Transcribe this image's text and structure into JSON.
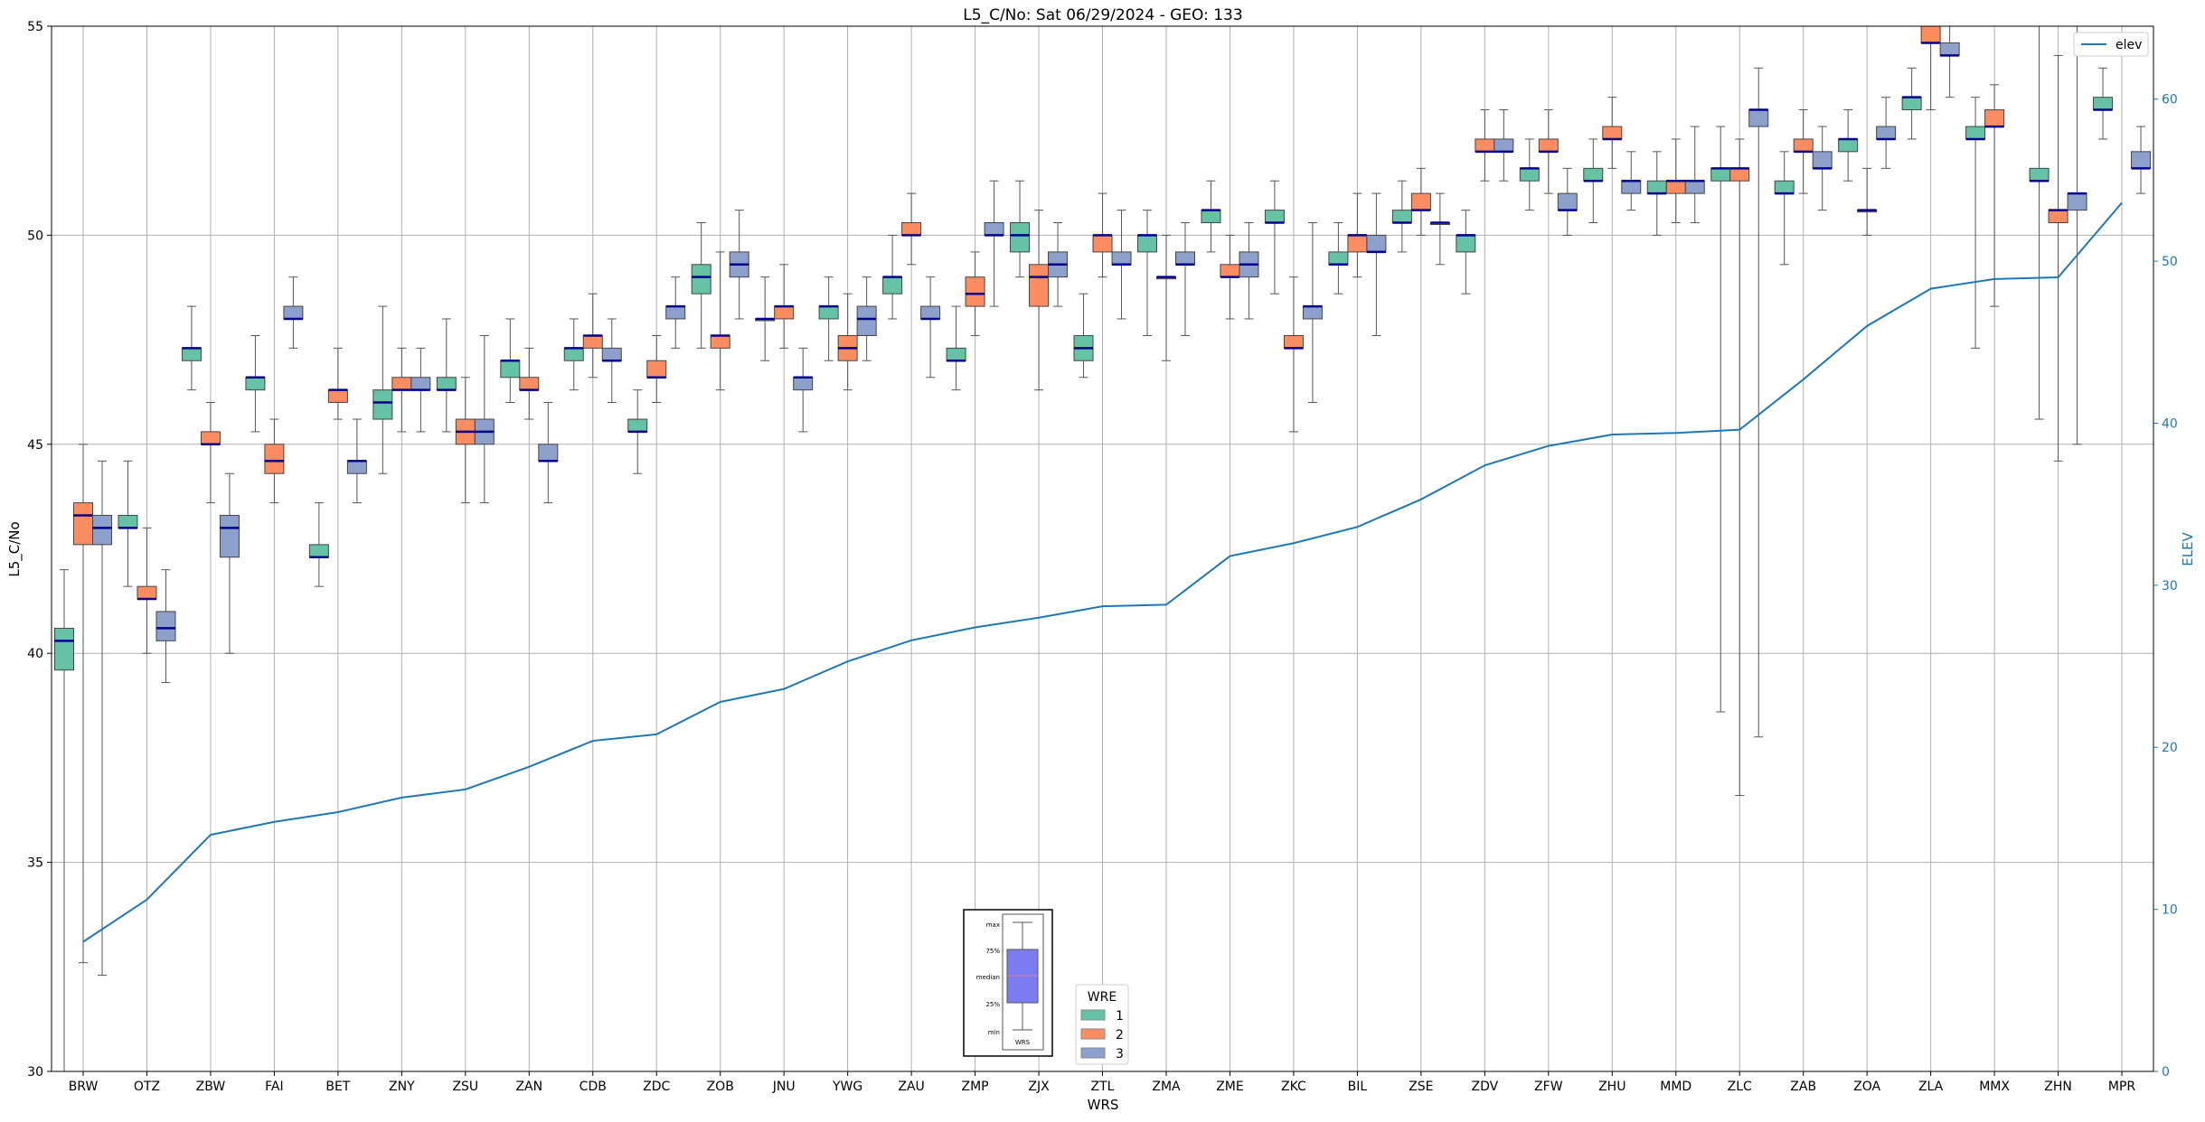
{
  "chart_data": {
    "type": "box",
    "title": "L5_C/No: Sat 06/29/2024 - GEO: 133",
    "xlabel": "WRS",
    "ylabel": "L5_C/No",
    "y2label": "ELEV",
    "ylim": [
      30,
      55
    ],
    "y2lim": [
      0,
      64.5
    ],
    "yticks": [
      30,
      35,
      40,
      45,
      50,
      55
    ],
    "y2ticks": [
      0,
      10,
      20,
      30,
      40,
      50,
      60
    ],
    "grid": true,
    "categories": [
      "BRW",
      "OTZ",
      "ZBW",
      "FAI",
      "BET",
      "ZNY",
      "ZSU",
      "ZAN",
      "CDB",
      "ZDC",
      "ZOB",
      "JNU",
      "YWG",
      "ZAU",
      "ZMP",
      "ZJX",
      "ZTL",
      "ZMA",
      "ZME",
      "ZKC",
      "BIL",
      "ZSE",
      "ZDV",
      "ZFW",
      "ZHU",
      "MMD",
      "ZLC",
      "ZAB",
      "ZOA",
      "ZLA",
      "MMX",
      "ZHN",
      "MPR"
    ],
    "wre_colors": {
      "1": "#66c2a5",
      "2": "#fc8d62",
      "3": "#8da0cb"
    },
    "boxes": [
      {
        "wrs": "BRW",
        "wre": 1,
        "min": 30.0,
        "q1": 39.6,
        "median": 40.3,
        "q3": 40.6,
        "max": 42.0
      },
      {
        "wrs": "BRW",
        "wre": 2,
        "min": 32.6,
        "q1": 42.6,
        "median": 43.3,
        "q3": 43.6,
        "max": 45.0
      },
      {
        "wrs": "BRW",
        "wre": 3,
        "min": 32.3,
        "q1": 42.6,
        "median": 43.0,
        "q3": 43.3,
        "max": 44.6
      },
      {
        "wrs": "OTZ",
        "wre": 1,
        "min": 41.6,
        "q1": 43.0,
        "median": 43.0,
        "q3": 43.3,
        "max": 44.6
      },
      {
        "wrs": "OTZ",
        "wre": 2,
        "min": 40.0,
        "q1": 41.3,
        "median": 41.3,
        "q3": 41.6,
        "max": 43.0
      },
      {
        "wrs": "OTZ",
        "wre": 3,
        "min": 39.3,
        "q1": 40.3,
        "median": 40.6,
        "q3": 41.0,
        "max": 42.0
      },
      {
        "wrs": "ZBW",
        "wre": 1,
        "min": 46.3,
        "q1": 47.0,
        "median": 47.3,
        "q3": 47.3,
        "max": 48.3
      },
      {
        "wrs": "ZBW",
        "wre": 2,
        "min": 43.6,
        "q1": 45.0,
        "median": 45.0,
        "q3": 45.3,
        "max": 46.0
      },
      {
        "wrs": "ZBW",
        "wre": 3,
        "min": 40.0,
        "q1": 42.3,
        "median": 43.0,
        "q3": 43.3,
        "max": 44.3
      },
      {
        "wrs": "FAI",
        "wre": 1,
        "min": 45.3,
        "q1": 46.3,
        "median": 46.6,
        "q3": 46.6,
        "max": 47.6
      },
      {
        "wrs": "FAI",
        "wre": 2,
        "min": 43.6,
        "q1": 44.3,
        "median": 44.6,
        "q3": 45.0,
        "max": 45.6
      },
      {
        "wrs": "FAI",
        "wre": 3,
        "min": 47.3,
        "q1": 48.0,
        "median": 48.0,
        "q3": 48.3,
        "max": 49.0
      },
      {
        "wrs": "BET",
        "wre": 1,
        "min": 41.6,
        "q1": 42.3,
        "median": 42.3,
        "q3": 42.6,
        "max": 43.6
      },
      {
        "wrs": "BET",
        "wre": 2,
        "min": 45.6,
        "q1": 46.0,
        "median": 46.3,
        "q3": 46.3,
        "max": 47.3
      },
      {
        "wrs": "BET",
        "wre": 3,
        "min": 43.6,
        "q1": 44.3,
        "median": 44.6,
        "q3": 44.6,
        "max": 45.6
      },
      {
        "wrs": "ZNY",
        "wre": 1,
        "min": 44.3,
        "q1": 45.6,
        "median": 46.0,
        "q3": 46.3,
        "max": 48.3
      },
      {
        "wrs": "ZNY",
        "wre": 2,
        "min": 45.3,
        "q1": 46.3,
        "median": 46.3,
        "q3": 46.6,
        "max": 47.3
      },
      {
        "wrs": "ZNY",
        "wre": 3,
        "min": 45.3,
        "q1": 46.3,
        "median": 46.3,
        "q3": 46.6,
        "max": 47.3
      },
      {
        "wrs": "ZSU",
        "wre": 1,
        "min": 45.3,
        "q1": 46.3,
        "median": 46.3,
        "q3": 46.6,
        "max": 48.0
      },
      {
        "wrs": "ZSU",
        "wre": 2,
        "min": 43.6,
        "q1": 45.0,
        "median": 45.3,
        "q3": 45.6,
        "max": 46.6
      },
      {
        "wrs": "ZSU",
        "wre": 3,
        "min": 43.6,
        "q1": 45.0,
        "median": 45.3,
        "q3": 45.6,
        "max": 47.6
      },
      {
        "wrs": "ZAN",
        "wre": 1,
        "min": 46.0,
        "q1": 46.6,
        "median": 47.0,
        "q3": 47.0,
        "max": 48.0
      },
      {
        "wrs": "ZAN",
        "wre": 2,
        "min": 45.6,
        "q1": 46.3,
        "median": 46.3,
        "q3": 46.6,
        "max": 47.3
      },
      {
        "wrs": "ZAN",
        "wre": 3,
        "min": 43.6,
        "q1": 44.6,
        "median": 44.6,
        "q3": 45.0,
        "max": 46.0
      },
      {
        "wrs": "CDB",
        "wre": 1,
        "min": 46.3,
        "q1": 47.0,
        "median": 47.3,
        "q3": 47.3,
        "max": 48.0
      },
      {
        "wrs": "CDB",
        "wre": 2,
        "min": 46.6,
        "q1": 47.3,
        "median": 47.6,
        "q3": 47.6,
        "max": 48.6
      },
      {
        "wrs": "CDB",
        "wre": 3,
        "min": 46.0,
        "q1": 47.0,
        "median": 47.0,
        "q3": 47.3,
        "max": 48.0
      },
      {
        "wrs": "ZDC",
        "wre": 1,
        "min": 44.3,
        "q1": 45.3,
        "median": 45.3,
        "q3": 45.6,
        "max": 46.3
      },
      {
        "wrs": "ZDC",
        "wre": 2,
        "min": 46.0,
        "q1": 46.6,
        "median": 46.6,
        "q3": 47.0,
        "max": 47.6
      },
      {
        "wrs": "ZDC",
        "wre": 3,
        "min": 47.3,
        "q1": 48.0,
        "median": 48.3,
        "q3": 48.3,
        "max": 49.0
      },
      {
        "wrs": "ZOB",
        "wre": 1,
        "min": 47.3,
        "q1": 48.6,
        "median": 49.0,
        "q3": 49.3,
        "max": 50.3
      },
      {
        "wrs": "ZOB",
        "wre": 2,
        "min": 46.3,
        "q1": 47.3,
        "median": 47.6,
        "q3": 47.6,
        "max": 49.6
      },
      {
        "wrs": "ZOB",
        "wre": 3,
        "min": 48.0,
        "q1": 49.0,
        "median": 49.3,
        "q3": 49.6,
        "max": 50.6
      },
      {
        "wrs": "JNU",
        "wre": 1,
        "min": 47.0,
        "q1": 48.0,
        "median": 48.0,
        "q3": 48.0,
        "max": 49.0
      },
      {
        "wrs": "JNU",
        "wre": 2,
        "min": 47.3,
        "q1": 48.0,
        "median": 48.3,
        "q3": 48.3,
        "max": 49.3
      },
      {
        "wrs": "JNU",
        "wre": 3,
        "min": 45.3,
        "q1": 46.3,
        "median": 46.6,
        "q3": 46.6,
        "max": 47.3
      },
      {
        "wrs": "YWG",
        "wre": 1,
        "min": 47.0,
        "q1": 48.0,
        "median": 48.3,
        "q3": 48.3,
        "max": 49.0
      },
      {
        "wrs": "YWG",
        "wre": 2,
        "min": 46.3,
        "q1": 47.0,
        "median": 47.3,
        "q3": 47.6,
        "max": 48.6
      },
      {
        "wrs": "YWG",
        "wre": 3,
        "min": 47.0,
        "q1": 47.6,
        "median": 48.0,
        "q3": 48.3,
        "max": 49.0
      },
      {
        "wrs": "ZAU",
        "wre": 1,
        "min": 48.0,
        "q1": 48.6,
        "median": 49.0,
        "q3": 49.0,
        "max": 50.0
      },
      {
        "wrs": "ZAU",
        "wre": 2,
        "min": 49.3,
        "q1": 50.0,
        "median": 50.0,
        "q3": 50.3,
        "max": 51.0
      },
      {
        "wrs": "ZAU",
        "wre": 3,
        "min": 46.6,
        "q1": 48.0,
        "median": 48.0,
        "q3": 48.3,
        "max": 49.0
      },
      {
        "wrs": "ZMP",
        "wre": 1,
        "min": 46.3,
        "q1": 47.0,
        "median": 47.0,
        "q3": 47.3,
        "max": 48.3
      },
      {
        "wrs": "ZMP",
        "wre": 2,
        "min": 47.6,
        "q1": 48.3,
        "median": 48.6,
        "q3": 49.0,
        "max": 49.6
      },
      {
        "wrs": "ZMP",
        "wre": 3,
        "min": 48.3,
        "q1": 50.0,
        "median": 50.0,
        "q3": 50.3,
        "max": 51.3
      },
      {
        "wrs": "ZJX",
        "wre": 1,
        "min": 49.0,
        "q1": 49.6,
        "median": 50.0,
        "q3": 50.3,
        "max": 51.3
      },
      {
        "wrs": "ZJX",
        "wre": 2,
        "min": 46.3,
        "q1": 48.3,
        "median": 49.0,
        "q3": 49.3,
        "max": 50.6
      },
      {
        "wrs": "ZJX",
        "wre": 3,
        "min": 48.3,
        "q1": 49.0,
        "median": 49.3,
        "q3": 49.6,
        "max": 50.3
      },
      {
        "wrs": "ZTL",
        "wre": 1,
        "min": 46.6,
        "q1": 47.0,
        "median": 47.3,
        "q3": 47.6,
        "max": 48.6
      },
      {
        "wrs": "ZTL",
        "wre": 2,
        "min": 49.0,
        "q1": 49.6,
        "median": 50.0,
        "q3": 50.0,
        "max": 51.0
      },
      {
        "wrs": "ZTL",
        "wre": 3,
        "min": 48.0,
        "q1": 49.3,
        "median": 49.3,
        "q3": 49.6,
        "max": 50.6
      },
      {
        "wrs": "ZMA",
        "wre": 1,
        "min": 47.6,
        "q1": 49.6,
        "median": 50.0,
        "q3": 50.0,
        "max": 50.6
      },
      {
        "wrs": "ZMA",
        "wre": 2,
        "min": 47.0,
        "q1": 49.0,
        "median": 49.0,
        "q3": 49.0,
        "max": 50.0
      },
      {
        "wrs": "ZMA",
        "wre": 3,
        "min": 47.6,
        "q1": 49.3,
        "median": 49.3,
        "q3": 49.6,
        "max": 50.3
      },
      {
        "wrs": "ZME",
        "wre": 1,
        "min": 49.6,
        "q1": 50.3,
        "median": 50.6,
        "q3": 50.6,
        "max": 51.3
      },
      {
        "wrs": "ZME",
        "wre": 2,
        "min": 48.0,
        "q1": 49.0,
        "median": 49.0,
        "q3": 49.3,
        "max": 50.0
      },
      {
        "wrs": "ZME",
        "wre": 3,
        "min": 48.0,
        "q1": 49.0,
        "median": 49.3,
        "q3": 49.6,
        "max": 50.3
      },
      {
        "wrs": "ZKC",
        "wre": 1,
        "min": 48.6,
        "q1": 50.3,
        "median": 50.3,
        "q3": 50.6,
        "max": 51.3
      },
      {
        "wrs": "ZKC",
        "wre": 2,
        "min": 45.3,
        "q1": 47.3,
        "median": 47.3,
        "q3": 47.6,
        "max": 49.0
      },
      {
        "wrs": "ZKC",
        "wre": 3,
        "min": 46.0,
        "q1": 48.0,
        "median": 48.3,
        "q3": 48.3,
        "max": 50.3
      },
      {
        "wrs": "BIL",
        "wre": 1,
        "min": 48.6,
        "q1": 49.3,
        "median": 49.3,
        "q3": 49.6,
        "max": 50.3
      },
      {
        "wrs": "BIL",
        "wre": 2,
        "min": 49.0,
        "q1": 49.6,
        "median": 50.0,
        "q3": 50.0,
        "max": 51.0
      },
      {
        "wrs": "BIL",
        "wre": 3,
        "min": 47.6,
        "q1": 49.6,
        "median": 49.6,
        "q3": 50.0,
        "max": 51.0
      },
      {
        "wrs": "ZSE",
        "wre": 1,
        "min": 49.6,
        "q1": 50.3,
        "median": 50.3,
        "q3": 50.6,
        "max": 51.3
      },
      {
        "wrs": "ZSE",
        "wre": 2,
        "min": 50.0,
        "q1": 50.6,
        "median": 50.6,
        "q3": 51.0,
        "max": 51.6
      },
      {
        "wrs": "ZSE",
        "wre": 3,
        "min": 49.3,
        "q1": 50.3,
        "median": 50.3,
        "q3": 50.3,
        "max": 51.0
      },
      {
        "wrs": "ZDV",
        "wre": 1,
        "min": 48.6,
        "q1": 49.6,
        "median": 50.0,
        "q3": 50.0,
        "max": 50.6
      },
      {
        "wrs": "ZDV",
        "wre": 2,
        "min": 51.3,
        "q1": 52.0,
        "median": 52.0,
        "q3": 52.3,
        "max": 53.0
      },
      {
        "wrs": "ZDV",
        "wre": 3,
        "min": 51.3,
        "q1": 52.0,
        "median": 52.0,
        "q3": 52.3,
        "max": 53.0
      },
      {
        "wrs": "ZFW",
        "wre": 1,
        "min": 50.6,
        "q1": 51.3,
        "median": 51.6,
        "q3": 51.6,
        "max": 52.3
      },
      {
        "wrs": "ZFW",
        "wre": 2,
        "min": 51.0,
        "q1": 52.0,
        "median": 52.0,
        "q3": 52.3,
        "max": 53.0
      },
      {
        "wrs": "ZFW",
        "wre": 3,
        "min": 50.0,
        "q1": 50.6,
        "median": 50.6,
        "q3": 51.0,
        "max": 51.6
      },
      {
        "wrs": "ZHU",
        "wre": 1,
        "min": 50.3,
        "q1": 51.3,
        "median": 51.3,
        "q3": 51.6,
        "max": 52.3
      },
      {
        "wrs": "ZHU",
        "wre": 2,
        "min": 51.6,
        "q1": 52.3,
        "median": 52.3,
        "q3": 52.6,
        "max": 53.3
      },
      {
        "wrs": "ZHU",
        "wre": 3,
        "min": 50.6,
        "q1": 51.0,
        "median": 51.3,
        "q3": 51.3,
        "max": 52.0
      },
      {
        "wrs": "MMD",
        "wre": 1,
        "min": 50.0,
        "q1": 51.0,
        "median": 51.0,
        "q3": 51.3,
        "max": 52.0
      },
      {
        "wrs": "MMD",
        "wre": 2,
        "min": 50.3,
        "q1": 51.0,
        "median": 51.3,
        "q3": 51.3,
        "max": 52.3
      },
      {
        "wrs": "MMD",
        "wre": 3,
        "min": 50.3,
        "q1": 51.0,
        "median": 51.3,
        "q3": 51.3,
        "max": 52.6
      },
      {
        "wrs": "ZLC",
        "wre": 1,
        "min": 38.6,
        "q1": 51.3,
        "median": 51.6,
        "q3": 51.6,
        "max": 52.6
      },
      {
        "wrs": "ZLC",
        "wre": 2,
        "min": 36.6,
        "q1": 51.3,
        "median": 51.6,
        "q3": 51.6,
        "max": 52.3
      },
      {
        "wrs": "ZLC",
        "wre": 3,
        "min": 38.0,
        "q1": 52.6,
        "median": 53.0,
        "q3": 53.0,
        "max": 54.0
      },
      {
        "wrs": "ZAB",
        "wre": 1,
        "min": 49.3,
        "q1": 51.0,
        "median": 51.0,
        "q3": 51.3,
        "max": 52.0
      },
      {
        "wrs": "ZAB",
        "wre": 2,
        "min": 51.0,
        "q1": 52.0,
        "median": 52.0,
        "q3": 52.3,
        "max": 53.0
      },
      {
        "wrs": "ZAB",
        "wre": 3,
        "min": 50.6,
        "q1": 51.6,
        "median": 51.6,
        "q3": 52.0,
        "max": 52.6
      },
      {
        "wrs": "ZOA",
        "wre": 1,
        "min": 51.3,
        "q1": 52.0,
        "median": 52.3,
        "q3": 52.3,
        "max": 53.0
      },
      {
        "wrs": "ZOA",
        "wre": 2,
        "min": 50.0,
        "q1": 50.6,
        "median": 50.6,
        "q3": 50.6,
        "max": 51.6
      },
      {
        "wrs": "ZOA",
        "wre": 3,
        "min": 51.6,
        "q1": 52.3,
        "median": 52.3,
        "q3": 52.6,
        "max": 53.3
      },
      {
        "wrs": "ZLA",
        "wre": 1,
        "min": 52.3,
        "q1": 53.0,
        "median": 53.3,
        "q3": 53.3,
        "max": 54.0
      },
      {
        "wrs": "ZLA",
        "wre": 2,
        "min": 53.0,
        "q1": 54.6,
        "median": 54.6,
        "q3": 55.0,
        "max": 55.0
      },
      {
        "wrs": "ZLA",
        "wre": 3,
        "min": 53.3,
        "q1": 54.3,
        "median": 54.3,
        "q3": 54.6,
        "max": 55.0
      },
      {
        "wrs": "MMX",
        "wre": 1,
        "min": 47.3,
        "q1": 52.3,
        "median": 52.3,
        "q3": 52.6,
        "max": 53.3
      },
      {
        "wrs": "MMX",
        "wre": 2,
        "min": 48.3,
        "q1": 52.6,
        "median": 52.6,
        "q3": 53.0,
        "max": 53.6
      },
      {
        "wrs": "MMX",
        "wre": 3,
        "min": null,
        "q1": null,
        "median": null,
        "q3": null,
        "max": null
      },
      {
        "wrs": "ZHN",
        "wre": 1,
        "min": 45.6,
        "q1": 51.3,
        "median": 51.3,
        "q3": 51.6,
        "max": 55.0
      },
      {
        "wrs": "ZHN",
        "wre": 2,
        "min": 44.6,
        "q1": 50.3,
        "median": 50.6,
        "q3": 50.6,
        "max": 54.3
      },
      {
        "wrs": "ZHN",
        "wre": 3,
        "min": 45.0,
        "q1": 50.6,
        "median": 51.0,
        "q3": 51.0,
        "max": 55.0
      },
      {
        "wrs": "MPR",
        "wre": 1,
        "min": 52.3,
        "q1": 53.0,
        "median": 53.0,
        "q3": 53.3,
        "max": 54.0
      },
      {
        "wrs": "MPR",
        "wre": 2,
        "min": null,
        "q1": null,
        "median": null,
        "q3": null,
        "max": null
      },
      {
        "wrs": "MPR",
        "wre": 3,
        "min": 51.0,
        "q1": 51.6,
        "median": 51.6,
        "q3": 52.0,
        "max": 52.6
      }
    ],
    "elev_series": {
      "name": "elev",
      "color": "#1f77b4",
      "values": [
        8.0,
        10.6,
        14.6,
        15.4,
        16.0,
        16.9,
        17.4,
        18.8,
        20.4,
        20.8,
        22.8,
        23.6,
        25.3,
        26.6,
        27.4,
        28.0,
        28.7,
        28.8,
        31.8,
        32.6,
        33.6,
        35.3,
        37.4,
        38.6,
        39.3,
        39.4,
        39.6,
        42.7,
        46.0,
        48.3,
        48.9,
        49.0,
        53.6
      ]
    },
    "legend_elev": {
      "label": "elev",
      "position": "top-right"
    },
    "legend_wre": {
      "title": "WRE",
      "entries": [
        "1",
        "2",
        "3"
      ],
      "position": "bottom-center"
    },
    "inset_key": {
      "labels": [
        "max",
        "75%",
        "median",
        "25%",
        "min"
      ],
      "xlabel": "WRS",
      "color": "#7b7cf0"
    }
  }
}
